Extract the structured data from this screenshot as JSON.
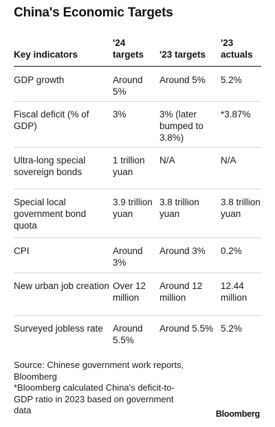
{
  "chart_data": {
    "type": "table",
    "title": "China's Economic Targets",
    "columns": [
      "Key indicators",
      "'24 targets",
      "'23 targets",
      "'23 actuals"
    ],
    "rows": [
      [
        "GDP growth",
        "Around 5%",
        "Around 5%",
        "5.2%"
      ],
      [
        "Fiscal deficit (% of GDP)",
        "3%",
        "3% (later bumped to 3.8%)",
        "*3.87%"
      ],
      [
        "Ultra-long special sovereign bonds",
        "1 trillion yuan",
        "N/A",
        "N/A"
      ],
      [
        "Special local government bond quota",
        "3.9 trillion yuan",
        "3.8 trillion yuan",
        "3.8 trillion yuan"
      ],
      [
        "CPI",
        "Around 3%",
        "Around 3%",
        "0.2%"
      ],
      [
        "New urban job creation",
        "Over 12 million",
        "Around 12 million",
        "12.44 million"
      ],
      [
        "Surveyed jobless rate",
        "Around 5.5%",
        "Around 5.5%",
        "5.2%"
      ]
    ]
  },
  "footer": {
    "source": "Source: Chinese government work reports, Bloomberg",
    "note": "*Bloomberg calculated China's deficit-to-GDP ratio in 2023 based on government data"
  },
  "brand": "Bloomberg"
}
